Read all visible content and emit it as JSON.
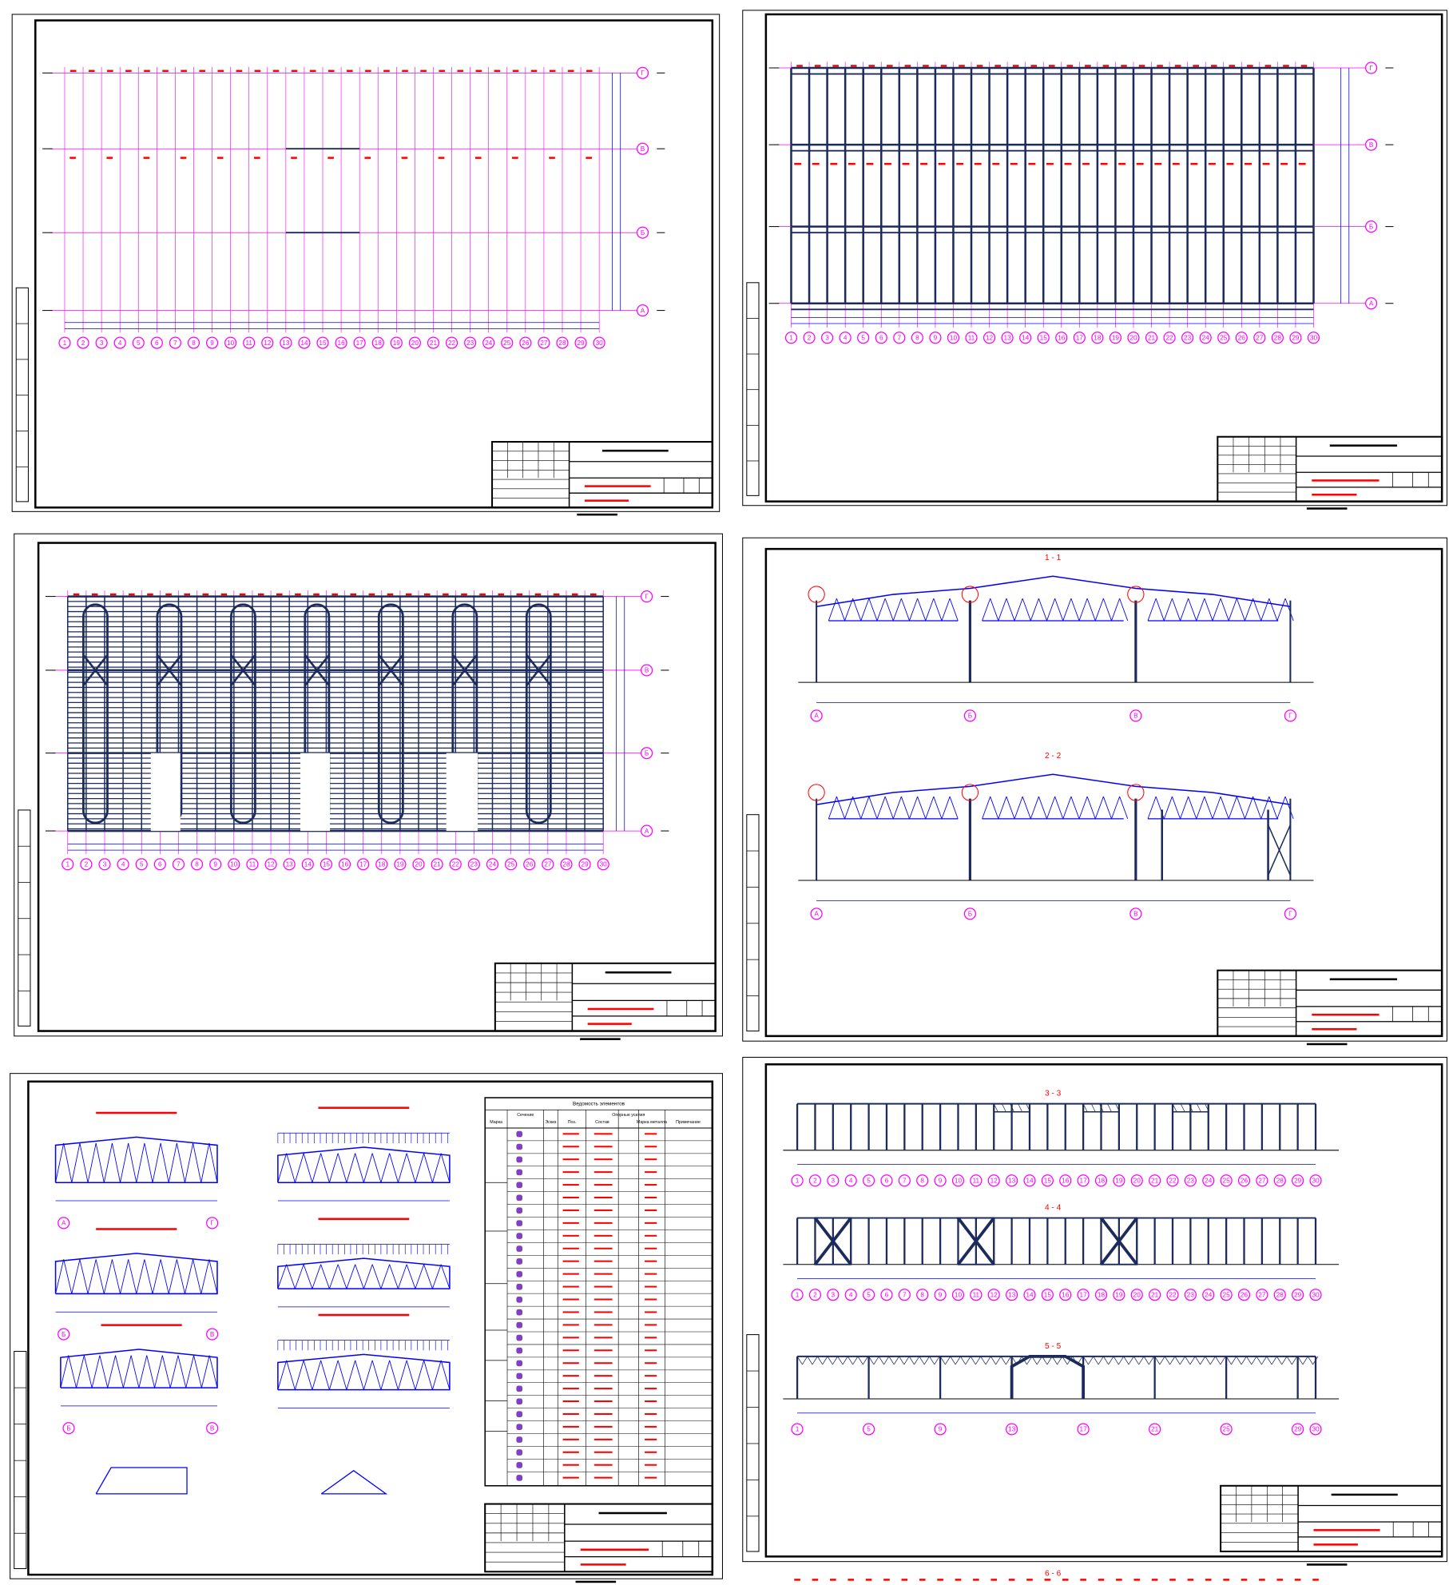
{
  "axes_numbers": [
    1,
    2,
    3,
    4,
    5,
    6,
    7,
    8,
    9,
    10,
    11,
    12,
    13,
    14,
    15,
    16,
    17,
    18,
    19,
    20,
    21,
    22,
    23,
    24,
    25,
    26,
    27,
    28,
    29,
    30
  ],
  "axes_letters": [
    "А",
    "Б",
    "В",
    "Г"
  ],
  "sections": [
    "1 - 1",
    "2 - 2",
    "3 - 3",
    "4 - 4",
    "5 - 5",
    "6 - 6"
  ],
  "table": {
    "title": "Ведомость элементов",
    "columns": [
      "Марка",
      "Сечение",
      "Эскиз",
      "Поз.",
      "Состав",
      "Опорные усилия",
      "Марка металла",
      "Примечание"
    ]
  }
}
